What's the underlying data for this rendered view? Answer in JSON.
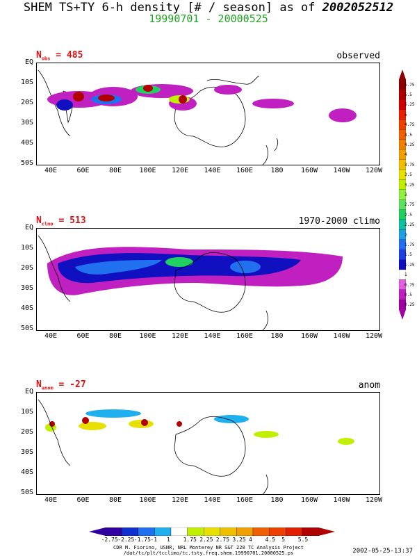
{
  "title_main": "SHEM TS+TY 6-h density [# / season] as of ",
  "title_date": "2002052512",
  "subtitle": "19990701 - 20000525",
  "panels": [
    {
      "n_label": "N",
      "n_sub": "obs",
      "n_value": " = 485",
      "label": "observed"
    },
    {
      "n_label": "N",
      "n_sub": "clmo",
      "n_value": " = 513",
      "label": "1970-2000 climo"
    },
    {
      "n_label": "N",
      "n_sub": "anom",
      "n_value": " = -27",
      "label": "anom"
    }
  ],
  "lat_labels": [
    "EQ",
    "10S",
    "20S",
    "30S",
    "40S",
    "50S"
  ],
  "lon_labels": [
    "40E",
    "60E",
    "80E",
    "100E",
    "120E",
    "140E",
    "160E",
    "180",
    "160W",
    "140W",
    "120W"
  ],
  "colorbar_right": [
    "5.75",
    "5.5",
    "5.25",
    "5",
    "4.75",
    "4.5",
    "4.25",
    "4",
    "3.75",
    "3.5",
    "3.25",
    "3",
    "2.75",
    "2.5",
    "2.25",
    "2",
    "1.75",
    "1.5",
    "1.25",
    "1",
    "0.75",
    "0.5",
    "0.25"
  ],
  "colorbar_right_colors": [
    "#8b0000",
    "#b00000",
    "#d00000",
    "#e82000",
    "#f04000",
    "#f06000",
    "#f08000",
    "#f0a000",
    "#f0c000",
    "#e8e000",
    "#c0f000",
    "#90f040",
    "#60e060",
    "#20d060",
    "#10c0a0",
    "#20a0e0",
    "#2070f0",
    "#2040e0",
    "#1010c0",
    "#ffffff",
    "#e060e0",
    "#c020c0",
    "#a000a0"
  ],
  "colorbar_bottom": [
    "-2.75",
    "-2.25",
    "-1.75",
    "-1",
    "1",
    "1.75",
    "2.25",
    "2.75",
    "3.25",
    "4",
    "4.5",
    "5",
    "5.5"
  ],
  "colorbar_bottom_colors": [
    "#3000a0",
    "#1030d0",
    "#2070f0",
    "#20b0f0",
    "#ffffff",
    "#c0f000",
    "#e8e000",
    "#f0c000",
    "#f0a000",
    "#f06000",
    "#f04000",
    "#e02000",
    "#b00000"
  ],
  "footer_line1": "CDR M. Fiorino, USNR, NRL Monterey NR S&T 220 TC Analysis Project",
  "footer_line2": "/dat/tc/plt/tcclimo/tc.tsty.freq.shem.19990701.20000525.ps",
  "timestamp": "2002-05-25-13:37"
}
